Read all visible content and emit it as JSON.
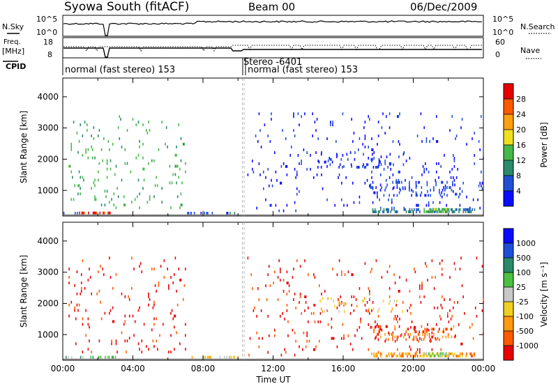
{
  "header": {
    "station": "Syowa South (fitACF)",
    "beam": "Beam 00",
    "date": "06/Dec/2009"
  },
  "top_panels": {
    "nsky": {
      "label": "N.Sky",
      "ticks": [
        "10^5",
        "10^0"
      ]
    },
    "nsearch": {
      "label": "N.Search",
      "ticks": [
        "10^5",
        "10^0"
      ]
    },
    "freq": {
      "label": "Freq.",
      "unit": "[MHz]",
      "ticks": [
        "18",
        "8"
      ]
    },
    "nave": {
      "label": "Nave",
      "ticks": [
        "60",
        "0"
      ]
    },
    "cpid": {
      "label": "CPID",
      "segments": [
        {
          "label": "normal (fast stereo) 153",
          "start_hour": 0,
          "end_hour": 10.25
        },
        {
          "label": "Stereo -6401",
          "start_hour": 10.25,
          "end_hour": 10.35
        },
        {
          "label": "normal (fast stereo) 153",
          "start_hour": 10.35,
          "end_hour": 24
        }
      ]
    }
  },
  "chart_data": [
    {
      "type": "heatmap",
      "panel": "power",
      "xlabel": "",
      "ylabel": "Slant Range [km]",
      "xlim": [
        0,
        24
      ],
      "ylim": [
        180,
        4600
      ],
      "yticks": [
        1000,
        2000,
        3000,
        4000
      ],
      "colorbar": {
        "label": "Power [dB]",
        "range": [
          0,
          32
        ],
        "ticks": [
          "4",
          "8",
          "12",
          "16",
          "20",
          "24",
          "28"
        ],
        "colors": [
          "#0a0aff",
          "#1f4fd6",
          "#2a8a6a",
          "#46b84a",
          "#f0e020",
          "#ffa010",
          "#ff5a00",
          "#e80000"
        ]
      },
      "regions": [
        {
          "t": [
            0.3,
            7.0
          ],
          "r": [
            400,
            3500
          ],
          "v": 13,
          "density": 0.04
        },
        {
          "t": [
            0.9,
            2.7
          ],
          "r": [
            220,
            330
          ],
          "v": 30,
          "density": 0.55
        },
        {
          "t": [
            0.0,
            0.9
          ],
          "r": [
            220,
            320
          ],
          "v": 4,
          "density": 0.3
        },
        {
          "t": [
            7.0,
            10.0
          ],
          "r": [
            220,
            320
          ],
          "v": 6,
          "density": 0.25
        },
        {
          "t": [
            10.5,
            24.0
          ],
          "r": [
            300,
            3500
          ],
          "v": 3,
          "density": 0.03
        },
        {
          "t": [
            14.5,
            19.5
          ],
          "r": [
            1700,
            2200
          ],
          "v": 4,
          "density": 0.12
        },
        {
          "t": [
            17.5,
            22.5
          ],
          "r": [
            800,
            1300
          ],
          "v": 5,
          "density": 0.14
        },
        {
          "t": [
            17.5,
            23.5
          ],
          "r": [
            280,
            420
          ],
          "v": 9,
          "density": 0.45
        },
        {
          "t": [
            20.5,
            22.0
          ],
          "r": [
            280,
            430
          ],
          "v": 14,
          "density": 0.5
        }
      ]
    },
    {
      "type": "heatmap",
      "panel": "velocity",
      "xlabel": "Time UT",
      "ylabel": "Slant Range [km]",
      "xlim": [
        0,
        24
      ],
      "ylim": [
        180,
        4600
      ],
      "yticks": [
        1000,
        2000,
        3000,
        4000
      ],
      "xticks": [
        "00:00",
        "04:00",
        "08:00",
        "12:00",
        "16:00",
        "20:00",
        "00:00"
      ],
      "colorbar": {
        "label": "Velocity [m s⁻¹]",
        "ticks": [
          "-1000",
          "-500",
          "-100",
          "-25",
          "25",
          "100",
          "500",
          "1000"
        ],
        "colors": [
          "#e80000",
          "#ff5a00",
          "#ff9a10",
          "#f0d020",
          "#c8c8c8",
          "#4cc040",
          "#2a8a6a",
          "#1f4fd6",
          "#0a0aff"
        ]
      },
      "regions": [
        {
          "t": [
            0.3,
            7.0
          ],
          "r": [
            400,
            3500
          ],
          "v": 0,
          "density": 0.04
        },
        {
          "t": [
            0.0,
            3.0
          ],
          "r": [
            220,
            330
          ],
          "v": 5,
          "density": 0.4
        },
        {
          "t": [
            7.0,
            10.0
          ],
          "r": [
            220,
            330
          ],
          "v": 3,
          "density": 0.3
        },
        {
          "t": [
            10.5,
            24.0
          ],
          "r": [
            300,
            3500
          ],
          "v": 0,
          "density": 0.03
        },
        {
          "t": [
            14.5,
            19.5
          ],
          "r": [
            1700,
            2200
          ],
          "v": 3,
          "density": 0.12
        },
        {
          "t": [
            17.5,
            22.5
          ],
          "r": [
            800,
            1300
          ],
          "v": 1,
          "density": 0.16
        },
        {
          "t": [
            17.5,
            23.5
          ],
          "r": [
            280,
            420
          ],
          "v": 2,
          "density": 0.45
        },
        {
          "t": [
            20.5,
            22.0
          ],
          "r": [
            280,
            430
          ],
          "v": 4,
          "density": 0.45
        }
      ]
    }
  ]
}
